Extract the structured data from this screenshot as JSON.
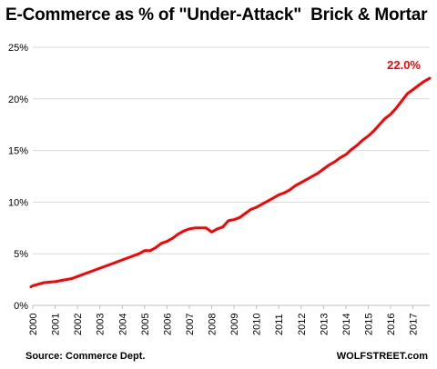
{
  "chart_data": {
    "type": "line",
    "title": "E-Commerce as % of \"Under-Attack\"  Brick & Mortar",
    "xlabel": "",
    "ylabel": "",
    "ylim": [
      0,
      25
    ],
    "xlim": [
      2000,
      2017.75
    ],
    "grid": "horizontal",
    "y_ticks": [
      "0%",
      "5%",
      "10%",
      "15%",
      "20%",
      "25%"
    ],
    "x_ticks": [
      "2000",
      "2001",
      "2002",
      "2003",
      "2004",
      "2005",
      "2006",
      "2007",
      "2008",
      "2009",
      "2010",
      "2011",
      "2012",
      "2013",
      "2014",
      "2015",
      "2016",
      "2017"
    ],
    "end_label": "22.0%",
    "line_color": "#ff0000",
    "series": [
      {
        "x": [
          1999.75,
          2000.0,
          2000.5,
          2001.0,
          2001.5,
          2001.75,
          2002.0,
          2002.5,
          2003.0,
          2003.5,
          2004.0,
          2004.5,
          2004.75,
          2005.0,
          2005.25,
          2005.5,
          2005.75,
          2006.0,
          2006.25,
          2006.5,
          2006.75,
          2007.0,
          2007.25,
          2007.5,
          2007.75,
          2008.0,
          2008.25,
          2008.5,
          2008.75,
          2009.0,
          2009.25,
          2009.5,
          2009.75,
          2010.0,
          2010.25,
          2010.5,
          2010.75,
          2011.0,
          2011.25,
          2011.5,
          2011.75,
          2012.0,
          2012.25,
          2012.5,
          2012.75,
          2013.0,
          2013.25,
          2013.5,
          2013.75,
          2014.0,
          2014.25,
          2014.5,
          2014.75,
          2015.0,
          2015.25,
          2015.5,
          2015.75,
          2016.0,
          2016.25,
          2016.5,
          2016.75,
          2017.0,
          2017.25,
          2017.5,
          2017.75
        ],
        "values": [
          1.8,
          1.9,
          2.2,
          2.3,
          2.5,
          2.6,
          2.8,
          3.2,
          3.6,
          4.0,
          4.4,
          4.8,
          5.0,
          5.3,
          5.3,
          5.6,
          6.0,
          6.2,
          6.5,
          6.9,
          7.2,
          7.4,
          7.5,
          7.5,
          7.5,
          7.1,
          7.4,
          7.6,
          8.2,
          8.3,
          8.5,
          8.9,
          9.3,
          9.5,
          9.8,
          10.1,
          10.4,
          10.7,
          10.9,
          11.2,
          11.6,
          11.9,
          12.2,
          12.5,
          12.8,
          13.2,
          13.6,
          13.9,
          14.3,
          14.6,
          15.1,
          15.5,
          16.0,
          16.4,
          16.9,
          17.5,
          18.1,
          18.5,
          19.1,
          19.8,
          20.5,
          20.9,
          21.3,
          21.7,
          22.0
        ]
      }
    ]
  },
  "footer": {
    "source": "Source: Commerce Dept.",
    "brand": "WOLFSTREET.com"
  }
}
